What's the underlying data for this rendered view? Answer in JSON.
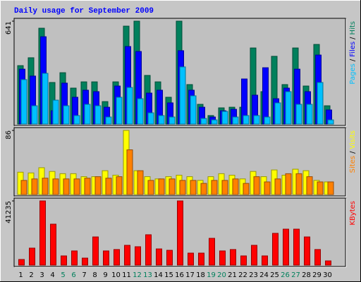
{
  "chart_data": [
    {
      "type": "bar",
      "title": "Daily usage for September 2009",
      "categories": [
        "1",
        "2",
        "3",
        "4",
        "5",
        "6",
        "7",
        "8",
        "9",
        "10",
        "11",
        "12",
        "13",
        "14",
        "15",
        "16",
        "17",
        "18",
        "19",
        "20",
        "21",
        "22",
        "23",
        "24",
        "25",
        "26",
        "27",
        "28",
        "29",
        "30"
      ],
      "category_colors": [
        "#000000",
        "#000000",
        "#000000",
        "#000000",
        "#00805c",
        "#00805c",
        "#000000",
        "#000000",
        "#000000",
        "#000000",
        "#000000",
        "#00805c",
        "#00805c",
        "#000000",
        "#000000",
        "#000000",
        "#000000",
        "#000000",
        "#00805c",
        "#00805c",
        "#000000",
        "#000000",
        "#000000",
        "#000000",
        "#000000",
        "#00805c",
        "#00805c",
        "#000000",
        "#000000",
        "#000000"
      ],
      "ylim": [
        0,
        641
      ],
      "yticks": [
        641
      ],
      "legend_separator": "/",
      "series": [
        {
          "name": "Hits",
          "color": "#00805c",
          "values": [
            364,
            413,
            597,
            259,
            320,
            224,
            263,
            263,
            140,
            263,
            610,
            641,
            303,
            263,
            167,
            641,
            246,
            123,
            53,
            101,
            105,
            105,
            474,
            202,
            422,
            246,
            474,
            237,
            496,
            114
          ]
        },
        {
          "name": "Files",
          "color": "#0000ff",
          "values": [
            342,
            299,
            544,
            83,
            255,
            167,
            211,
            202,
            105,
            237,
            483,
            452,
            193,
            211,
            132,
            457,
            211,
            105,
            44,
            83,
            92,
            281,
            180,
            351,
            158,
            224,
            342,
            202,
            430,
            88
          ]
        },
        {
          "name": "Pages",
          "color": "#00c0ff",
          "values": [
            277,
            114,
            316,
            149,
            114,
            53,
            123,
            114,
            44,
            167,
            228,
            158,
            70,
            53,
            44,
            356,
            176,
            35,
            26,
            79,
            44,
            53,
            53,
            44,
            132,
            202,
            123,
            123,
            259,
            26
          ]
        }
      ]
    },
    {
      "type": "bar",
      "ylim": [
        0,
        86
      ],
      "yticks": [
        86
      ],
      "legend_separator": "/",
      "series": [
        {
          "name": "Visits",
          "color": "#ffff00",
          "values": [
            30,
            29,
            36,
            31,
            28,
            28,
            24,
            24,
            32,
            26,
            86,
            32,
            24,
            21,
            24,
            26,
            24,
            19,
            24,
            28,
            26,
            21,
            31,
            24,
            33,
            26,
            34,
            32,
            19,
            17
          ]
        },
        {
          "name": "Sites",
          "color": "#ff8000",
          "values": [
            19,
            21,
            22,
            21,
            21,
            21,
            22,
            24,
            22,
            24,
            60,
            32,
            19,
            21,
            21,
            19,
            19,
            15,
            19,
            19,
            21,
            15,
            24,
            17,
            21,
            28,
            28,
            24,
            17,
            17
          ]
        }
      ]
    },
    {
      "type": "bar",
      "ylim": [
        0,
        41235
      ],
      "yticks": [
        41235
      ],
      "series": [
        {
          "name": "KBytes",
          "color": "#ff0000",
          "values": [
            3600,
            10900,
            41235,
            26300,
            5900,
            9100,
            4500,
            18100,
            9100,
            10000,
            12700,
            11800,
            19500,
            10400,
            9500,
            41235,
            7700,
            7700,
            17200,
            9100,
            10000,
            5900,
            12700,
            5900,
            20400,
            23100,
            23100,
            18100,
            10000,
            2700
          ]
        }
      ]
    }
  ]
}
